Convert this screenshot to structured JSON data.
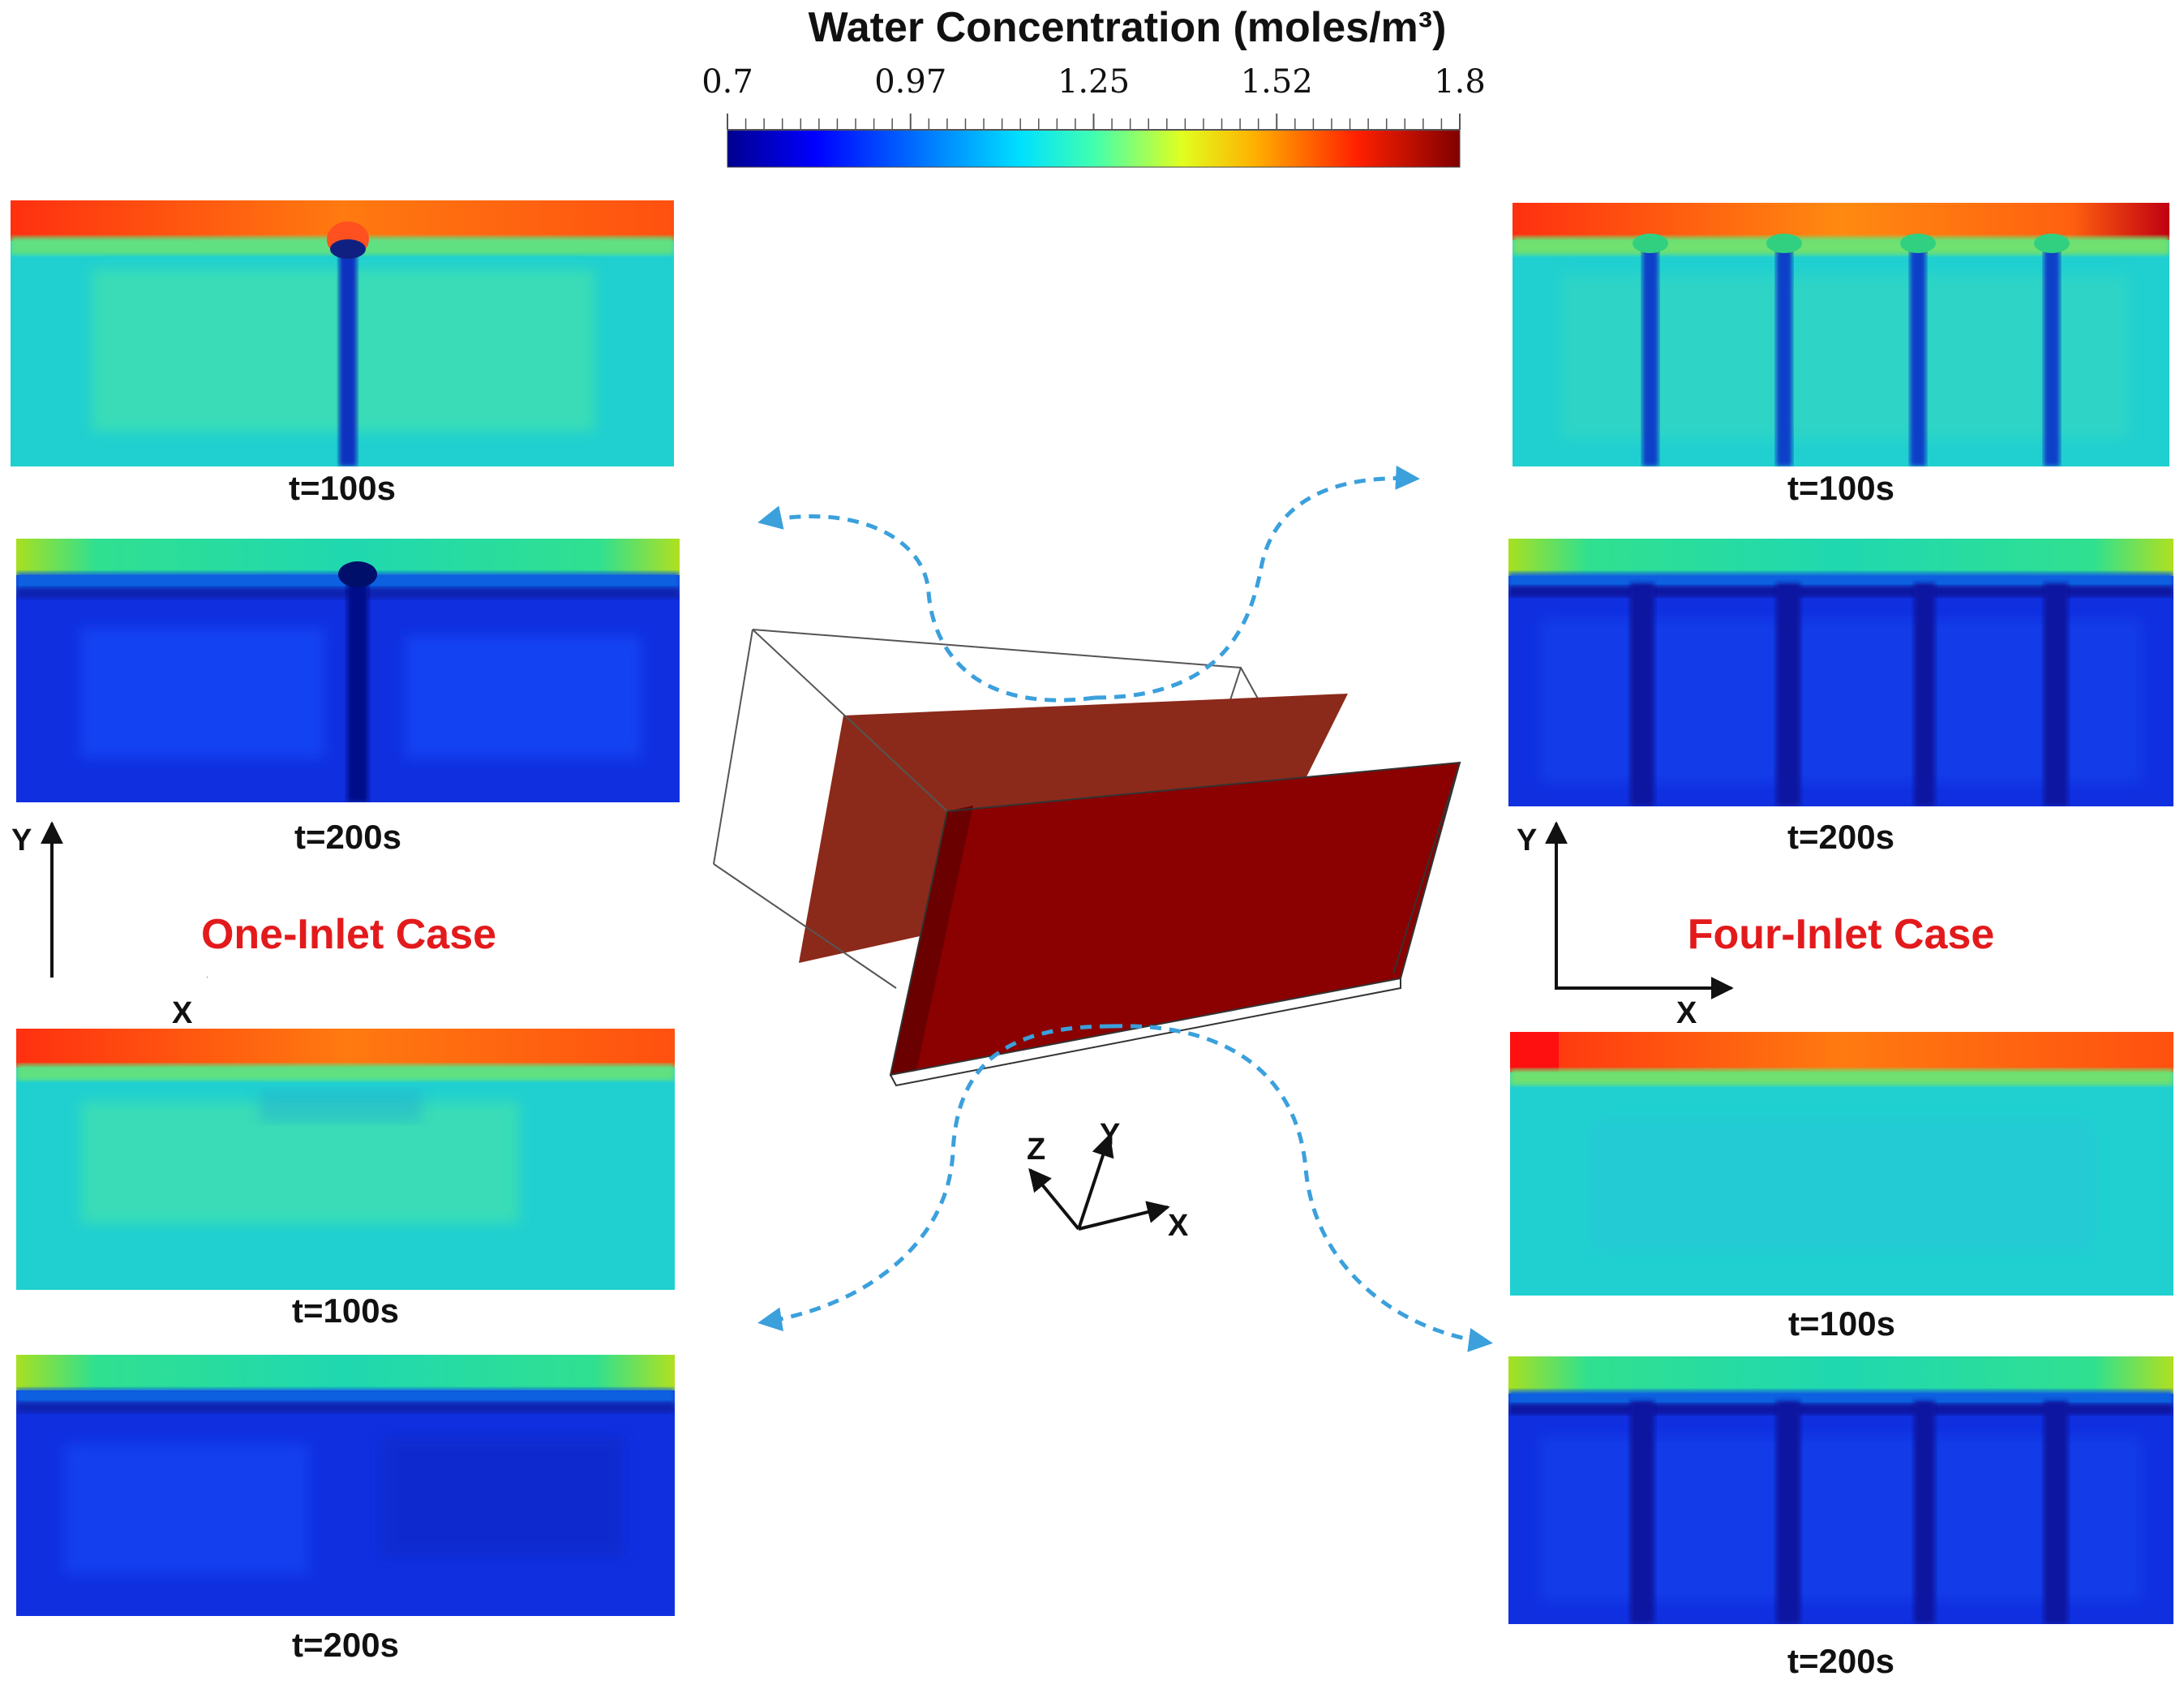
{
  "colorbar": {
    "title": "Water Concentration (moles/m³)",
    "tick_labels": [
      "0.7",
      "0.97",
      "1.25",
      "1.52",
      "1.8"
    ],
    "min": 0.7,
    "max": 1.8,
    "colormap": [
      "#00008f",
      "#0000ff",
      "#00a0ff",
      "#00ffff",
      "#80ff80",
      "#ffff00",
      "#ff8000",
      "#ff0000",
      "#800000"
    ]
  },
  "left": {
    "case_label": "One-Inlet Case",
    "top_pair": {
      "t1": "t=100s",
      "t2": "t=200s"
    },
    "bottom_pair": {
      "t1": "t=100s",
      "t2": "t=200s"
    },
    "axes": {
      "y": "Y",
      "x": "X"
    }
  },
  "right": {
    "case_label": "Four-Inlet Case",
    "top_pair": {
      "t1": "t=100s",
      "t2": "t=200s"
    },
    "bottom_pair": {
      "t1": "t=100s",
      "t2": "t=200s"
    },
    "axes": {
      "y": "Y",
      "x": "X"
    }
  },
  "center": {
    "triad": {
      "z": "Z",
      "y": "Y",
      "x": "X"
    }
  },
  "colors": {
    "case_label": "#e31a1c",
    "plate_front": "#8b0000",
    "plate_back": "#8b2a1a",
    "arrow": "#3ba0dc"
  }
}
